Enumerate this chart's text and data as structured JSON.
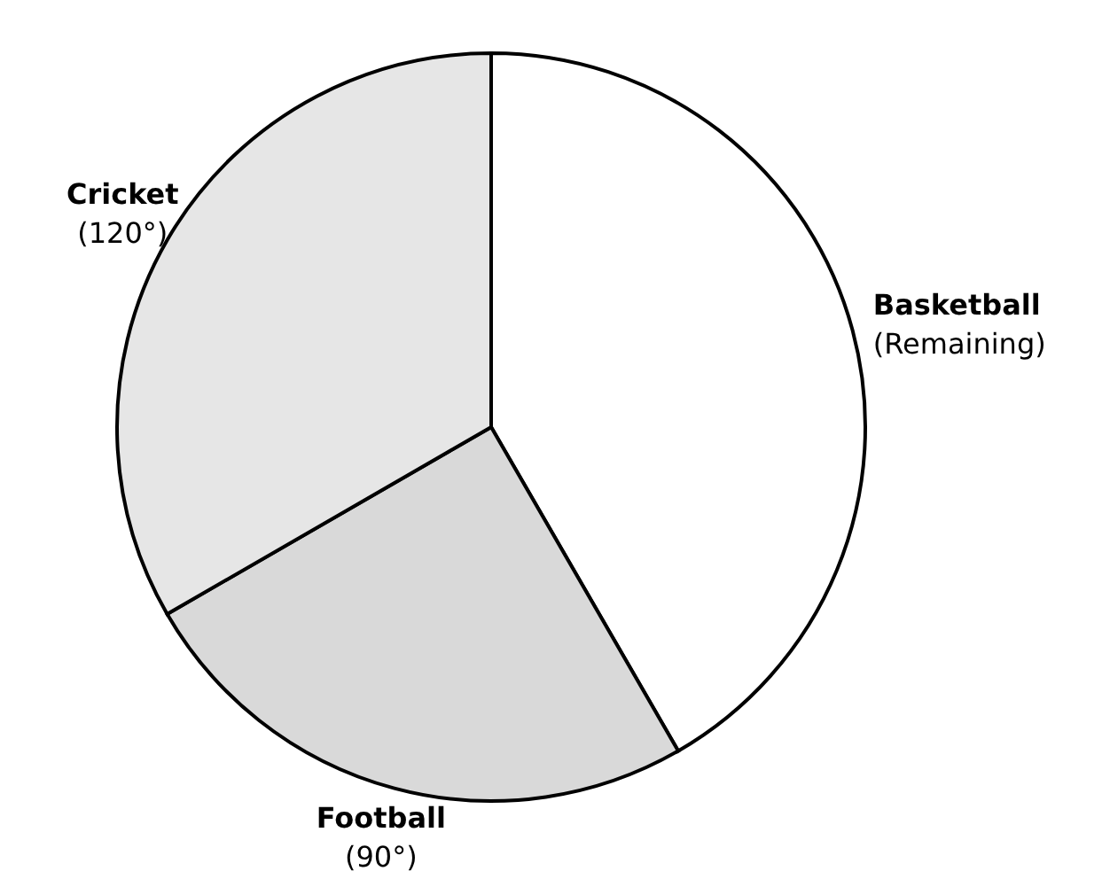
{
  "chart_data": {
    "type": "pie",
    "categories": [
      "Basketball",
      "Football",
      "Cricket"
    ],
    "values": [
      150,
      90,
      120
    ],
    "value_labels": [
      "(Remaining)",
      "(90°)",
      "(120°)"
    ],
    "colors": [
      "#ffffff",
      "#d9d9d9",
      "#e6e6e6"
    ]
  }
}
